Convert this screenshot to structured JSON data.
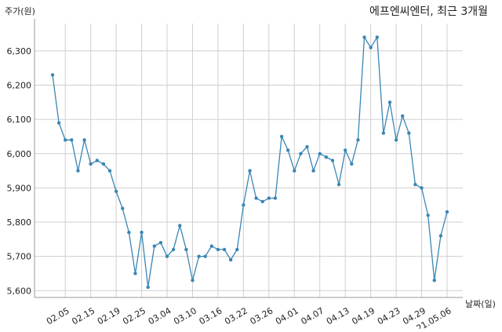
{
  "chart_data": {
    "type": "line",
    "title": "에프엔씨엔터, 최근 3개월",
    "ylabel": "주가(원)",
    "xlabel": "날짜(일)",
    "ylim": [
      5580,
      6380
    ],
    "yticks": [
      5600,
      5700,
      5800,
      5900,
      6000,
      6100,
      6200,
      6300
    ],
    "ytick_labels": [
      "5,600",
      "5,700",
      "5,800",
      "5,900",
      "6,000",
      "6,100",
      "6,200",
      "6,300"
    ],
    "grid": true,
    "color": "#3a86b4",
    "xtick_labels": [
      "02.05",
      "02.15",
      "02.19",
      "02.25",
      "03.04",
      "03.10",
      "03.16",
      "03.22",
      "03.26",
      "04.01",
      "04.07",
      "04.13",
      "04.19",
      "04.23",
      "04.29",
      "21.05.06"
    ],
    "xtick_index": [
      2,
      6,
      10,
      14,
      18,
      22,
      26,
      30,
      34,
      38,
      42,
      46,
      50,
      54,
      58,
      62
    ],
    "values": [
      6230,
      6090,
      6040,
      6040,
      5950,
      6040,
      5970,
      5980,
      5970,
      5950,
      5890,
      5840,
      5770,
      5650,
      5770,
      5610,
      5730,
      5740,
      5700,
      5720,
      5790,
      5720,
      5630,
      5700,
      5700,
      5730,
      5720,
      5720,
      5690,
      5720,
      5850,
      5950,
      5870,
      5860,
      5870,
      5870,
      6050,
      6010,
      5950,
      6000,
      6020,
      5950,
      6000,
      5990,
      5980,
      5910,
      6010,
      5970,
      6040,
      6340,
      6310,
      6340,
      6060,
      6150,
      6040,
      6110,
      6060,
      5910,
      5900,
      5820,
      5630,
      5760,
      5830
    ]
  }
}
